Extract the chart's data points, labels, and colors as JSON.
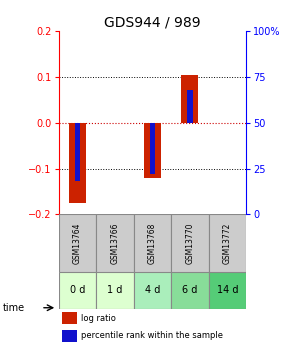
{
  "title": "GDS944 / 989",
  "samples": [
    "GSM13764",
    "GSM13766",
    "GSM13768",
    "GSM13770",
    "GSM13772"
  ],
  "time_labels": [
    "0 d",
    "1 d",
    "4 d",
    "6 d",
    "14 d"
  ],
  "log_ratio": [
    -0.175,
    0.0,
    -0.12,
    0.105,
    0.0
  ],
  "percentile_raw": [
    18,
    50,
    22,
    68,
    50
  ],
  "ylim_left": [
    -0.2,
    0.2
  ],
  "ylim_right": [
    0,
    100
  ],
  "bar_color_red": "#cc2200",
  "bar_color_blue": "#1111cc",
  "zero_line_color": "#cc0000",
  "title_fontsize": 10,
  "tick_fontsize": 7,
  "time_bg_colors": [
    "#ddffd0",
    "#ddffd0",
    "#aaeebb",
    "#88dd99",
    "#55cc77"
  ],
  "sample_bg_color": "#cccccc",
  "legend_text_red": "log ratio",
  "legend_text_blue": "percentile rank within the sample"
}
